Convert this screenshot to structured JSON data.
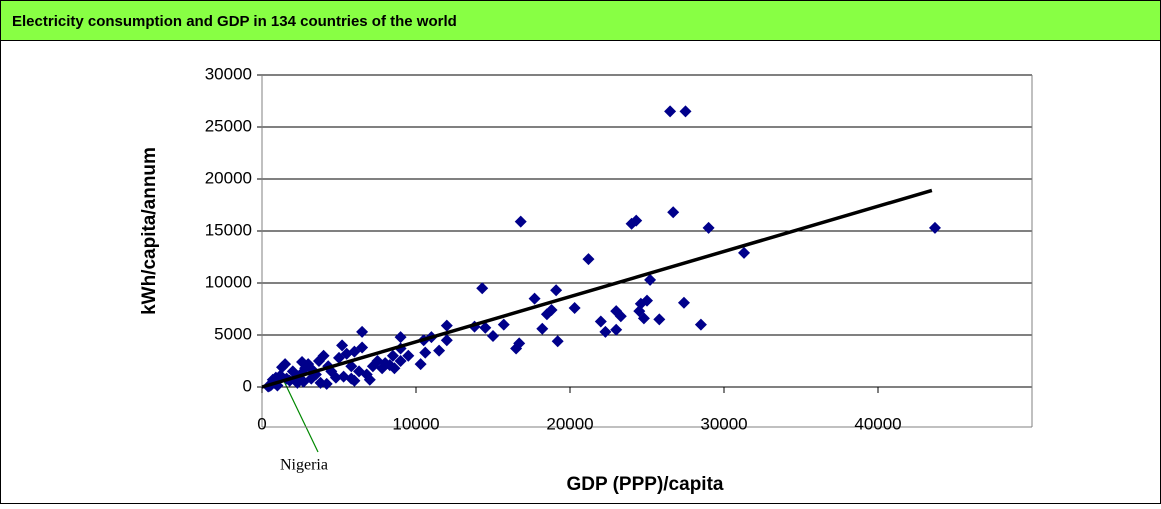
{
  "chart_data": {
    "type": "scatter",
    "title": "Electricity consumption and GDP in 134 countries of the world",
    "x_label": "GDP (PPP)/capita",
    "y_label": "kWh/capita/annum",
    "annotation": "Nigeria",
    "xlim": [
      0,
      50000
    ],
    "xticks": [
      0,
      10000,
      20000,
      30000,
      40000
    ],
    "ylim": [
      0,
      30000
    ],
    "yticks": [
      0,
      5000,
      10000,
      15000,
      20000,
      25000,
      30000
    ],
    "grid": true,
    "series": [
      {
        "color": "#00008b",
        "x": [
          26500,
          27500,
          16800,
          24000,
          24300,
          26700,
          29000,
          43700,
          21200,
          31300,
          14300,
          17700,
          19100,
          18500,
          18800,
          20300,
          25200,
          23000,
          24600,
          25000,
          24500,
          27400,
          23300,
          22000,
          22300,
          23000,
          24800,
          25800,
          28500,
          18200,
          19200,
          16500,
          16700,
          15000,
          15700,
          13800,
          14500,
          12000,
          12000,
          11500,
          11000,
          10500,
          10300,
          10600,
          9000,
          9000,
          8500,
          8600,
          8000,
          7500,
          6500,
          6500,
          6000,
          5800,
          5200,
          5500,
          5000,
          4500,
          4000,
          3700,
          3500,
          3000,
          2800,
          2500,
          2200,
          2000,
          1500,
          1300,
          1000,
          800,
          600,
          500,
          400,
          700,
          1200,
          1800,
          2300,
          2700,
          3200,
          3800,
          4200,
          4800,
          5300,
          5800,
          6300,
          6800,
          7200,
          7800,
          8300,
          9500,
          3300,
          4300,
          2600,
          1600,
          900,
          6000,
          7000,
          9000
        ],
        "values": [
          26500,
          26500,
          15900,
          15700,
          16000,
          16800,
          15300,
          15300,
          12300,
          12900,
          9500,
          8500,
          9300,
          7000,
          7400,
          7600,
          10300,
          7300,
          8000,
          8300,
          7300,
          8100,
          6800,
          6300,
          5300,
          5500,
          6600,
          6500,
          6000,
          5600,
          4400,
          3700,
          4200,
          4900,
          6000,
          5800,
          5700,
          5900,
          4500,
          3500,
          4800,
          4500,
          2200,
          3300,
          4800,
          3700,
          3000,
          1800,
          2300,
          2500,
          5300,
          3800,
          3400,
          2000,
          4000,
          3200,
          2800,
          1500,
          3000,
          2500,
          1200,
          2200,
          1800,
          1200,
          900,
          1500,
          2200,
          1900,
          150,
          400,
          200,
          100,
          50,
          700,
          1100,
          600,
          400,
          500,
          800,
          400,
          300,
          900,
          1000,
          800,
          1500,
          1200,
          2000,
          1800,
          2100,
          3000,
          1600,
          2000,
          2400,
          800,
          900,
          600,
          700,
          2500
        ]
      }
    ],
    "trendline": {
      "color": "#000000",
      "x": [
        0,
        43500
      ],
      "values": [
        0,
        18900
      ]
    }
  }
}
